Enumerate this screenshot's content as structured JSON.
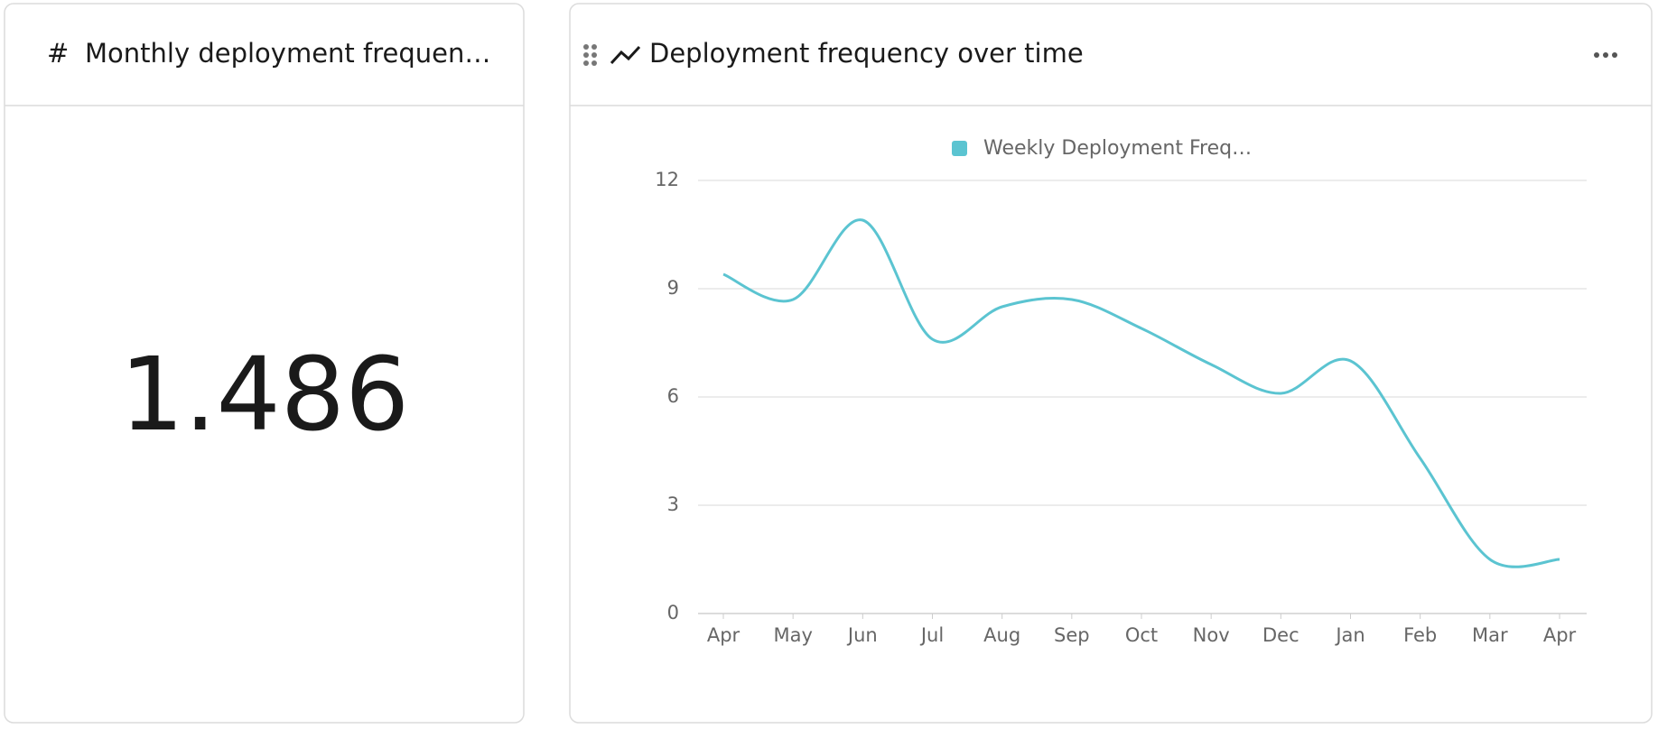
{
  "number_card": {
    "title": "Monthly deployment frequen…",
    "value": 1.486
  },
  "chart_card": {
    "title": "Deployment frequency over time"
  },
  "chart_data": {
    "type": "line",
    "categories": [
      "Apr",
      "May",
      "Jun",
      "Jul",
      "Aug",
      "Sep",
      "Oct",
      "Nov",
      "Dec",
      "Jan",
      "Feb",
      "Mar",
      "Apr"
    ],
    "series": [
      {
        "name": "Weekly Deployment Freq…",
        "color": "#5bc4d1",
        "values": [
          9.4,
          8.7,
          10.9,
          7.6,
          8.5,
          8.7,
          7.9,
          6.9,
          6.1,
          7.0,
          4.3,
          1.5,
          1.5
        ]
      }
    ],
    "ylim": [
      0,
      12
    ],
    "yticks": [
      0,
      3,
      6,
      9,
      12
    ],
    "grid": true,
    "legend": "top"
  }
}
